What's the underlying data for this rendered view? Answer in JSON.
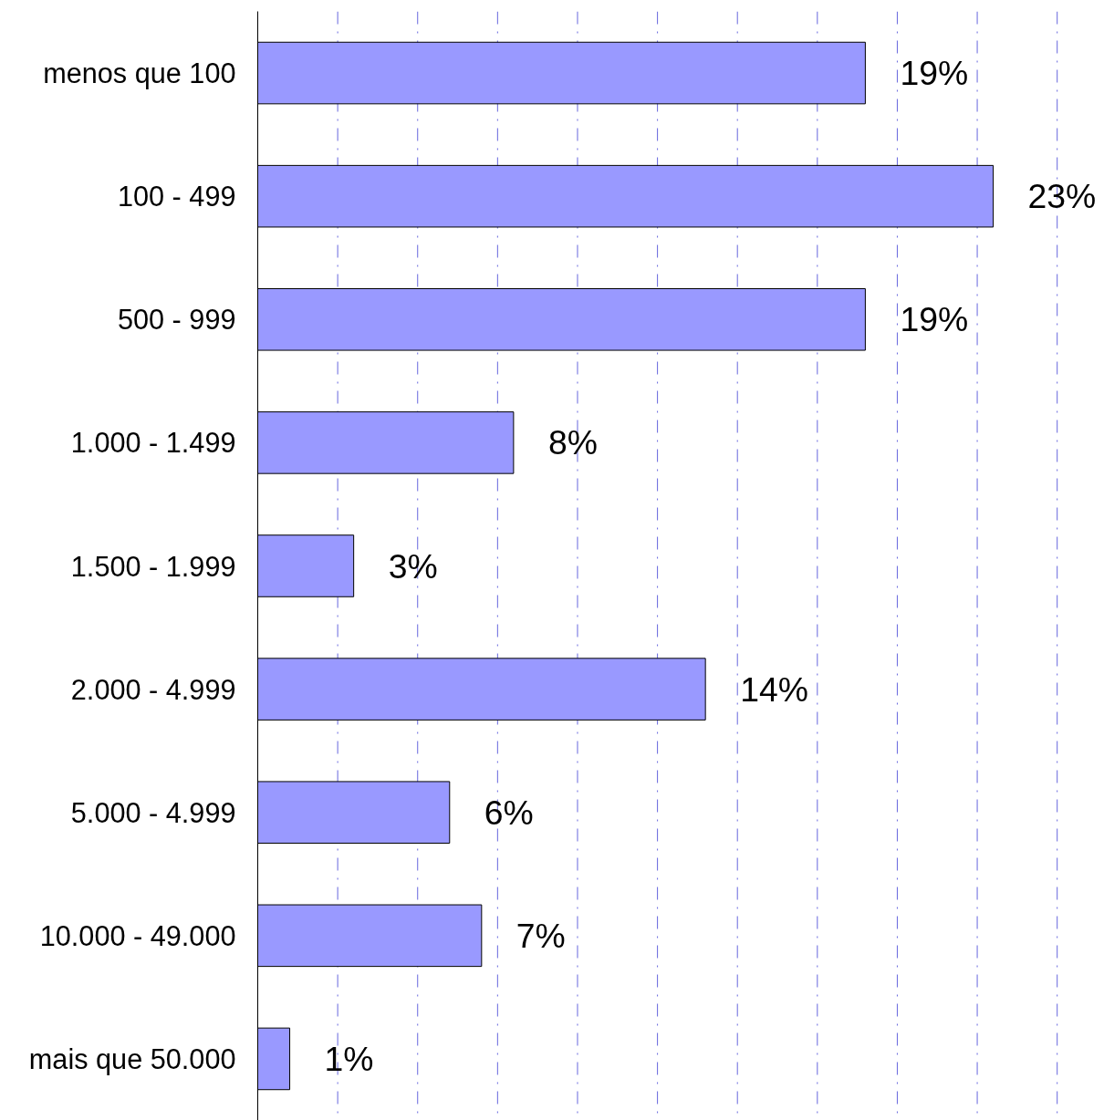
{
  "chart_data": {
    "type": "bar",
    "orientation": "horizontal",
    "categories": [
      "menos que 100",
      "100 - 499",
      "500 - 999",
      "1.000 - 1.499",
      "1.500 - 1.999",
      "2.000 - 4.999",
      "5.000 - 4.999",
      "10.000 - 49.000",
      "mais que 50.000"
    ],
    "values": [
      19,
      23,
      19,
      8,
      3,
      14,
      6,
      7,
      1
    ],
    "value_labels": [
      "19%",
      "23%",
      "19%",
      "8%",
      "3%",
      "14%",
      "6%",
      "7%",
      "1%"
    ],
    "color": "#9999ff",
    "ref_lines": [
      {
        "axis": "x",
        "value": 2.5,
        "label": null,
        "color": "#6666dd",
        "line_style": "dashed"
      },
      {
        "axis": "x",
        "value": 5,
        "label": null,
        "color": "#6666dd",
        "line_style": "dashed"
      },
      {
        "axis": "x",
        "value": 7.5,
        "label": null,
        "color": "#6666dd",
        "line_style": "dashed"
      },
      {
        "axis": "x",
        "value": 10,
        "label": null,
        "color": "#6666dd",
        "line_style": "dashed"
      },
      {
        "axis": "x",
        "value": 12.5,
        "label": null,
        "color": "#6666dd",
        "line_style": "dashed"
      },
      {
        "axis": "x",
        "value": 15,
        "label": null,
        "color": "#6666dd",
        "line_style": "dashed"
      },
      {
        "axis": "x",
        "value": 17.5,
        "label": null,
        "color": "#6666dd",
        "line_style": "dashed"
      },
      {
        "axis": "x",
        "value": 20,
        "label": null,
        "color": "#6666dd",
        "line_style": "dashed"
      },
      {
        "axis": "x",
        "value": 22.5,
        "label": null,
        "color": "#6666dd",
        "line_style": "dashed"
      },
      {
        "axis": "x",
        "value": 25,
        "label": null,
        "color": "#6666dd",
        "line_style": "dashed"
      }
    ],
    "tick_labels": "y"
  }
}
